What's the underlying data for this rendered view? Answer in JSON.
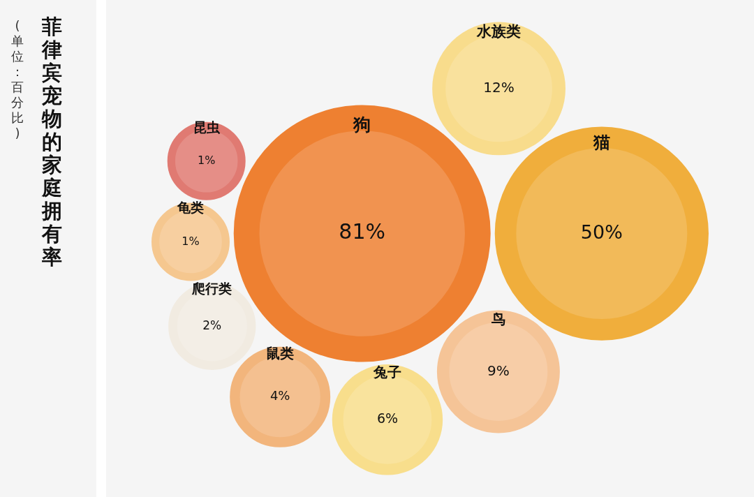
{
  "chart_data": {
    "type": "other",
    "title": "菲律宾宠物的家庭拥有率",
    "subtitle": "(单位：百分比)",
    "value_labels": [
      "81%",
      "50%",
      "12%",
      "9%",
      "6%",
      "4%",
      "2%",
      "1%",
      "1%"
    ],
    "categories": [
      "狗",
      "猫",
      "水族类",
      "鸟",
      "兔子",
      "鼠类",
      "爬行类",
      "龟类",
      "昆虫"
    ],
    "values": [
      81,
      50,
      12,
      9,
      6,
      4,
      2,
      1,
      1
    ],
    "colors": [
      "#ee8031",
      "#f0ae3c",
      "#f8dc8c",
      "#f5c497",
      "#f8de8c",
      "#f2b57c",
      "#f1ebe1",
      "#f5c78f",
      "#e07a72"
    ]
  }
}
